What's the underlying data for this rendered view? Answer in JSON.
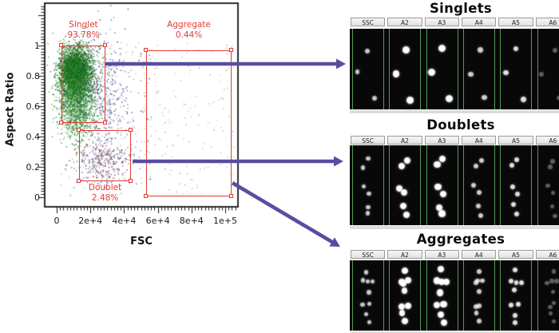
{
  "colors": {
    "gate_red": "#e23b35",
    "arrow_purple": "#584da0",
    "gallery_green": "#569a56",
    "plot_border": "#141414"
  },
  "chart_data": {
    "type": "scatter",
    "title": "",
    "xlabel": "FSC",
    "ylabel": "Aspect Ratio",
    "xlim": [
      0,
      107000
    ],
    "ylim": [
      -0.06,
      1.28
    ],
    "grid": false,
    "x_ticks": [
      {
        "value": 0,
        "label": "0"
      },
      {
        "value": 20000,
        "label": "2e+4"
      },
      {
        "value": 40000,
        "label": "4e+4"
      },
      {
        "value": 60000,
        "label": "6e+4"
      },
      {
        "value": 80000,
        "label": "8e+4"
      },
      {
        "value": 100000,
        "label": "1e+5"
      }
    ],
    "y_ticks": [
      {
        "value": 0,
        "label": "0"
      },
      {
        "value": 0.2,
        "label": "0.2"
      },
      {
        "value": 0.4,
        "label": "0.4"
      },
      {
        "value": 0.6,
        "label": "0.6"
      },
      {
        "value": 0.8,
        "label": "0.8"
      },
      {
        "value": 1,
        "label": "1"
      }
    ],
    "gates": [
      {
        "id": "singlet",
        "name": "Singlet",
        "percent": "93.78%",
        "x_range": [
          2850,
          28900
        ],
        "y_range": [
          0.489,
          1.0
        ],
        "label_above": true
      },
      {
        "id": "doublet",
        "name": "Doublet",
        "percent": "2.48%",
        "x_range": [
          13300,
          44100
        ],
        "y_range": [
          0.105,
          0.442
        ],
        "label_above": false
      },
      {
        "id": "aggregate",
        "name": "Aggregate",
        "percent": "0.44%",
        "x_range": [
          53100,
          103800
        ],
        "y_range": [
          0.005,
          0.968
        ],
        "label_above": true
      }
    ],
    "clusters": [
      {
        "name": "singlet-core",
        "n": 3200,
        "cx": 11000,
        "sx": 4600,
        "cy": 0.83,
        "sy": 0.075,
        "colors": [
          "#166818",
          "#1e7a1e",
          "#115511",
          "#2e8b2e"
        ]
      },
      {
        "name": "singlet-mid",
        "n": 1100,
        "cx": 11500,
        "sx": 5200,
        "cy": 0.7,
        "sy": 0.115,
        "colors": [
          "#1e7a1e",
          "#2e8b2e",
          "#166818",
          "#3c9a3c"
        ]
      },
      {
        "name": "singlet-tail",
        "n": 450,
        "cx": 12500,
        "sx": 6000,
        "cy": 0.55,
        "sy": 0.08,
        "colors": [
          "#2e8b2e",
          "#3c9a3c",
          "#1e7a1e"
        ]
      },
      {
        "name": "singlet-halo",
        "n": 320,
        "cx": 15000,
        "sx": 9500,
        "cy": 0.76,
        "sy": 0.17,
        "colors": [
          "#2e8b2e",
          "#3c9a3c",
          "#30309a",
          "#1e7a1e"
        ]
      },
      {
        "name": "blue-flank",
        "n": 260,
        "cx": 29000,
        "sx": 7500,
        "cy": 0.66,
        "sy": 0.22,
        "colors": [
          "#30309a",
          "#252578",
          "#4a3a9a",
          "#5a5ab0"
        ]
      },
      {
        "name": "blue-sparse",
        "n": 130,
        "uniform": true,
        "x0": 14000,
        "x1": 56000,
        "y0": 0.08,
        "y1": 1.0,
        "colors": [
          "#30309a",
          "#5a5ab0",
          "#8f8f8f"
        ]
      },
      {
        "name": "doublet-cloud",
        "n": 300,
        "cx": 27500,
        "sx": 8500,
        "cy": 0.25,
        "sy": 0.07,
        "colors": [
          "#7a2633",
          "#503a8a",
          "#5f5f5f",
          "#8a4a3a",
          "#3a3a8a"
        ]
      },
      {
        "name": "background",
        "n": 300,
        "uniform": true,
        "x0": 1500,
        "x1": 105000,
        "y0": 0.01,
        "y1": 1.04,
        "colors": [
          "#c9a266",
          "#b5a88a",
          "#9c9cb4",
          "#8f8f8f",
          "#d0ab5e",
          "#a8b8c8"
        ]
      }
    ]
  },
  "arrows": [
    {
      "name": "arrow-singlets",
      "from": [
        132,
        80
      ],
      "to": [
        433,
        80
      ]
    },
    {
      "name": "arrow-doublets",
      "from": [
        166,
        202
      ],
      "to": [
        430,
        202
      ]
    },
    {
      "name": "arrow-aggregates",
      "from": [
        291,
        229
      ],
      "to": [
        426,
        309
      ]
    }
  ],
  "galleries": [
    {
      "title": "Singlets",
      "columns": [
        "SSC",
        "A2",
        "A3",
        "A4",
        "A5",
        "A6"
      ],
      "dot_size": 7,
      "col_styles": [
        {
          "opacity": 0.78,
          "scale": 0.85
        },
        {
          "opacity": 1,
          "scale": 1.25
        },
        {
          "opacity": 1,
          "scale": 1.3
        },
        {
          "opacity": 0.8,
          "scale": 0.95
        },
        {
          "opacity": 0.88,
          "scale": 0.95
        },
        {
          "opacity": 0.35,
          "scale": 0.85
        }
      ],
      "dots": [
        [
          52,
          26
        ],
        [
          16,
          55
        ],
        [
          72,
          87
        ]
      ]
    },
    {
      "title": "Doublets",
      "columns": [
        "SSC",
        "A2",
        "A3",
        "A4",
        "A5",
        "A6"
      ],
      "dot_size": 6.4,
      "col_styles": [
        {
          "opacity": 0.78,
          "scale": 0.85
        },
        {
          "opacity": 1,
          "scale": 1.25
        },
        {
          "opacity": 1,
          "scale": 1.3
        },
        {
          "opacity": 0.8,
          "scale": 0.95
        },
        {
          "opacity": 0.88,
          "scale": 0.95
        },
        {
          "opacity": 0.35,
          "scale": 0.85
        }
      ],
      "dots": [
        [
          37,
          26
        ],
        [
          53,
          18
        ],
        [
          35,
          52
        ],
        [
          50,
          60
        ],
        [
          45,
          76
        ],
        [
          52,
          87
        ]
      ]
    },
    {
      "title": "Aggregates",
      "columns": [
        "SSC",
        "A2",
        "A3",
        "A4",
        "A5",
        "A6"
      ],
      "dot_size": 6.2,
      "col_styles": [
        {
          "opacity": 0.78,
          "scale": 0.85
        },
        {
          "opacity": 1,
          "scale": 1.25
        },
        {
          "opacity": 1,
          "scale": 1.3
        },
        {
          "opacity": 0.8,
          "scale": 0.95
        },
        {
          "opacity": 0.88,
          "scale": 0.95
        },
        {
          "opacity": 0.35,
          "scale": 0.85
        }
      ],
      "dots": [
        [
          48,
          15
        ],
        [
          34,
          30
        ],
        [
          48,
          31
        ],
        [
          62,
          30
        ],
        [
          48,
          44
        ],
        [
          35,
          65
        ],
        [
          55,
          63
        ],
        [
          43,
          77
        ],
        [
          51,
          87
        ]
      ]
    }
  ]
}
